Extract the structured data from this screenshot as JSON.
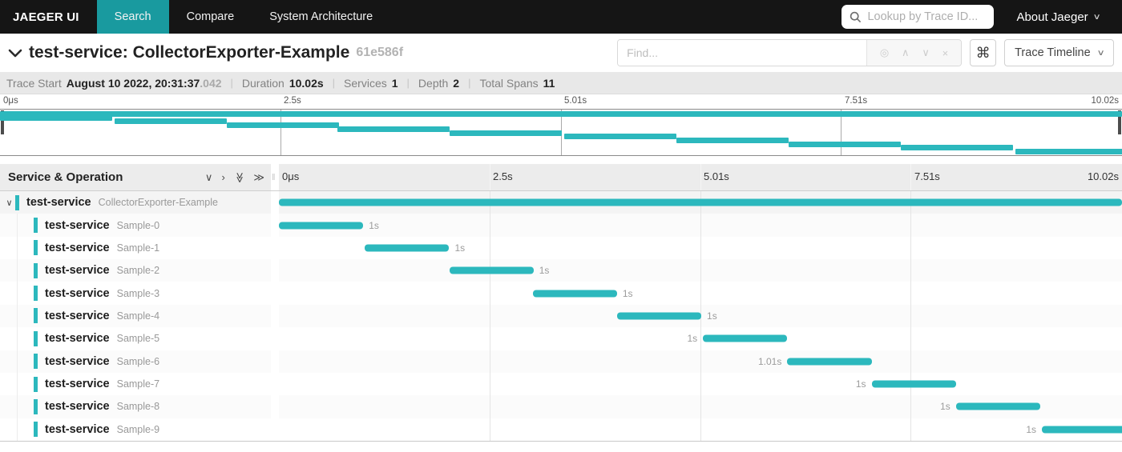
{
  "nav": {
    "brand": "JAEGER UI",
    "items": [
      {
        "label": "Search",
        "active": true
      },
      {
        "label": "Compare",
        "active": false
      },
      {
        "label": "System Architecture",
        "active": false
      }
    ],
    "lookup_placeholder": "Lookup by Trace ID...",
    "about_label": "About Jaeger"
  },
  "trace_header": {
    "title": "test-service: CollectorExporter-Example",
    "trace_id": "61e586f",
    "find_placeholder": "Find...",
    "find_icons": [
      {
        "name": "match-highlight-icon",
        "glyph": "◎"
      },
      {
        "name": "prev-result-icon",
        "glyph": "∧"
      },
      {
        "name": "next-result-icon",
        "glyph": "∨"
      },
      {
        "name": "clear-find-icon",
        "glyph": "×"
      }
    ],
    "shortcut_glyph": "⌘",
    "view_selector": "Trace Timeline"
  },
  "summary": {
    "items": [
      {
        "label": "Trace Start",
        "value": "August 10 2022, 20:31:37",
        "suffix": ".042"
      },
      {
        "label": "Duration",
        "value": "10.02s",
        "suffix": ""
      },
      {
        "label": "Services",
        "value": "1",
        "suffix": ""
      },
      {
        "label": "Depth",
        "value": "2",
        "suffix": ""
      },
      {
        "label": "Total Spans",
        "value": "11",
        "suffix": ""
      }
    ]
  },
  "timeline": {
    "left_header": "Service & Operation",
    "header_icons": [
      {
        "name": "collapse-one-icon",
        "glyph": "∨",
        "rotate": false
      },
      {
        "name": "expand-one-icon",
        "glyph": "›",
        "rotate": false
      },
      {
        "name": "collapse-all-icon",
        "glyph": "≫",
        "rotate": true
      },
      {
        "name": "expand-all-icon",
        "glyph": "≫",
        "rotate": false
      }
    ],
    "ticks": [
      {
        "label": "0μs",
        "pos": 0
      },
      {
        "label": "2.5s",
        "pos": 25
      },
      {
        "label": "5.01s",
        "pos": 50
      },
      {
        "label": "7.51s",
        "pos": 75
      },
      {
        "label": "10.02s",
        "pos": 100
      }
    ]
  },
  "spans": {
    "bar_color": "#2cb8bd",
    "rows": [
      {
        "service": "test-service",
        "operation": "CollectorExporter-Example",
        "depth": 0,
        "start_pct": 0,
        "width_pct": 100,
        "duration_label": "",
        "label_side": "none"
      },
      {
        "service": "test-service",
        "operation": "Sample-0",
        "depth": 1,
        "start_pct": 0,
        "width_pct": 10,
        "duration_label": "1s",
        "label_side": "right"
      },
      {
        "service": "test-service",
        "operation": "Sample-1",
        "depth": 1,
        "start_pct": 10.2,
        "width_pct": 10,
        "duration_label": "1s",
        "label_side": "right"
      },
      {
        "service": "test-service",
        "operation": "Sample-2",
        "depth": 1,
        "start_pct": 20.2,
        "width_pct": 10,
        "duration_label": "1s",
        "label_side": "right"
      },
      {
        "service": "test-service",
        "operation": "Sample-3",
        "depth": 1,
        "start_pct": 30.1,
        "width_pct": 10,
        "duration_label": "1s",
        "label_side": "right"
      },
      {
        "service": "test-service",
        "operation": "Sample-4",
        "depth": 1,
        "start_pct": 40.1,
        "width_pct": 10,
        "duration_label": "1s",
        "label_side": "right"
      },
      {
        "service": "test-service",
        "operation": "Sample-5",
        "depth": 1,
        "start_pct": 50.3,
        "width_pct": 10,
        "duration_label": "1s",
        "label_side": "left"
      },
      {
        "service": "test-service",
        "operation": "Sample-6",
        "depth": 1,
        "start_pct": 60.3,
        "width_pct": 10,
        "duration_label": "1.01s",
        "label_side": "left"
      },
      {
        "service": "test-service",
        "operation": "Sample-7",
        "depth": 1,
        "start_pct": 70.3,
        "width_pct": 10,
        "duration_label": "1s",
        "label_side": "left"
      },
      {
        "service": "test-service",
        "operation": "Sample-8",
        "depth": 1,
        "start_pct": 80.3,
        "width_pct": 10,
        "duration_label": "1s",
        "label_side": "left"
      },
      {
        "service": "test-service",
        "operation": "Sample-9",
        "depth": 1,
        "start_pct": 90.5,
        "width_pct": 10,
        "duration_label": "1s",
        "label_side": "left"
      }
    ]
  }
}
